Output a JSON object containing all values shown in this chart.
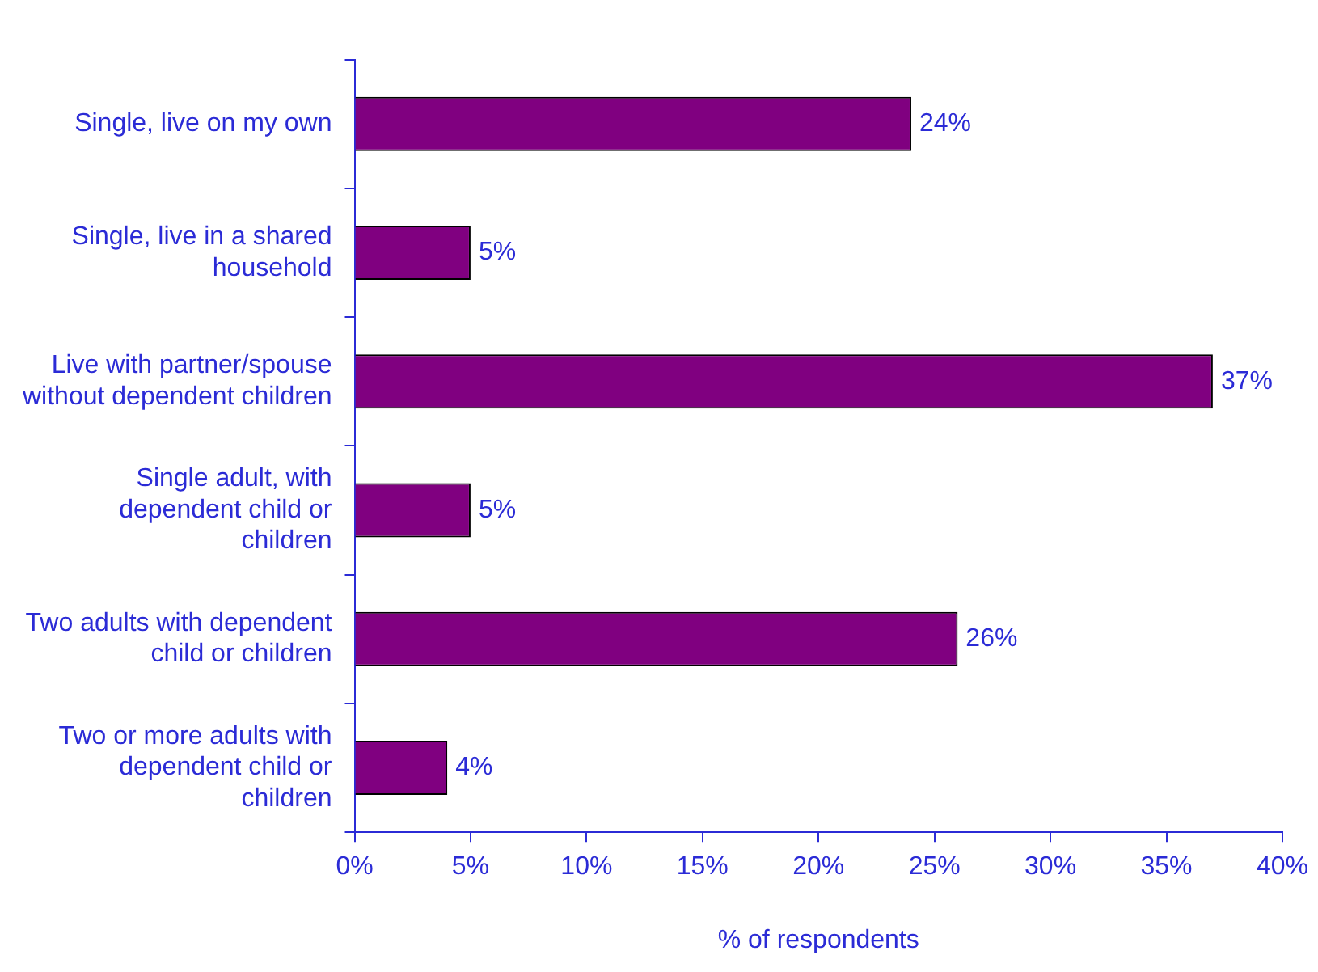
{
  "chart_data": {
    "type": "bar",
    "orientation": "horizontal",
    "xlabel": "% of respondents",
    "categories": [
      "Single, live on my own",
      "Single, live in a shared household",
      "Live with partner/spouse without dependent children",
      "Single adult, with dependent child or children",
      "Two adults with dependent child or children",
      "Two or more adults with dependent child or children"
    ],
    "values": [
      24,
      5,
      37,
      5,
      26,
      4
    ],
    "value_labels": [
      "24%",
      "5%",
      "37%",
      "5%",
      "26%",
      "4%"
    ],
    "color": "#800080",
    "xlim": [
      0,
      40
    ],
    "xticks": [
      {
        "value": 0,
        "label": "0%"
      },
      {
        "value": 5,
        "label": "5%"
      },
      {
        "value": 10,
        "label": "10%"
      },
      {
        "value": 15,
        "label": "15%"
      },
      {
        "value": 20,
        "label": "20%"
      },
      {
        "value": 25,
        "label": "25%"
      },
      {
        "value": 30,
        "label": "30%"
      },
      {
        "value": 35,
        "label": "35%"
      },
      {
        "value": 40,
        "label": "40%"
      }
    ],
    "grid": false,
    "legend": false
  }
}
